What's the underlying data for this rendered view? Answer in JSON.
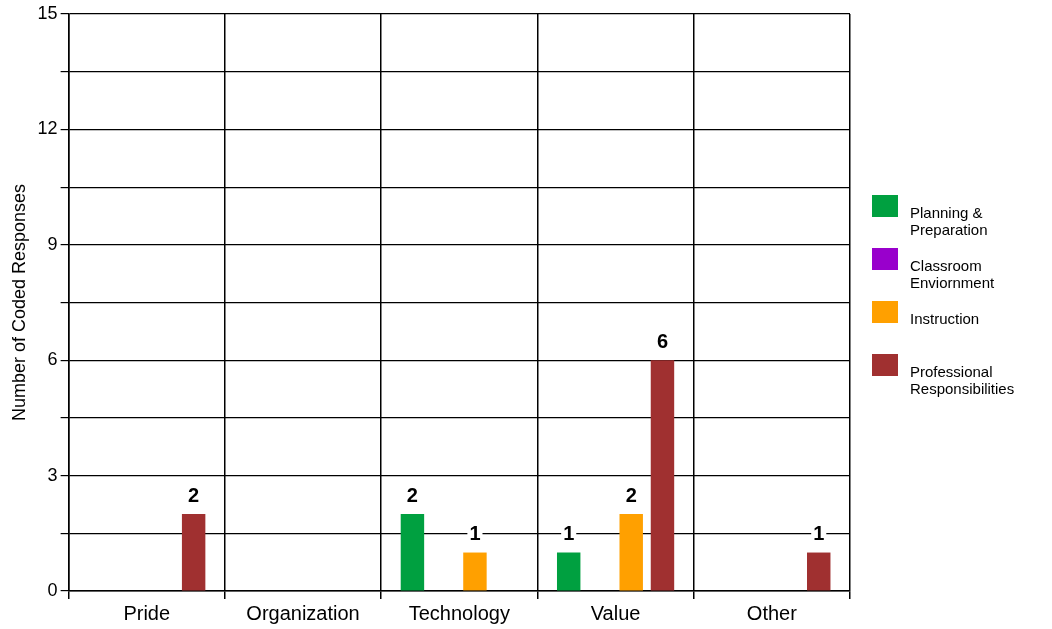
{
  "chart_data": {
    "type": "bar",
    "ylabel": "Number of Coded Responses",
    "categories": [
      "Pride",
      "Organization",
      "Technology",
      "Value",
      "Other"
    ],
    "series": [
      {
        "name": "Planning & Preparation",
        "color": "#00a040",
        "values": [
          0,
          0,
          2,
          1,
          0
        ],
        "value_labels": [
          null,
          null,
          "2",
          "1",
          null
        ]
      },
      {
        "name": "Classroom Enviornment",
        "color": "#9900cc",
        "values": [
          0,
          0,
          0,
          0,
          0
        ],
        "value_labels": [
          null,
          null,
          null,
          null,
          null
        ]
      },
      {
        "name": "Instruction",
        "color": "#ffa000",
        "values": [
          0,
          0,
          1,
          2,
          0
        ],
        "value_labels": [
          null,
          null,
          "1",
          "2",
          null
        ]
      },
      {
        "name": "Professional Responsibilities",
        "color": "#a03030",
        "values": [
          2,
          0,
          0,
          6,
          1
        ],
        "value_labels": [
          "2",
          null,
          null,
          "6",
          "1"
        ]
      }
    ],
    "ylim": [
      0,
      15
    ],
    "yticks": [
      0,
      {
        "value": 1.5,
        "label": null
      },
      3,
      {
        "value": 4.5,
        "label": null
      },
      6,
      {
        "value": 7.5,
        "label": null
      },
      9,
      {
        "value": 10.5,
        "label": null
      },
      12,
      {
        "value": 13.5,
        "label": null
      },
      15
    ],
    "grid": true,
    "legend": "right"
  }
}
